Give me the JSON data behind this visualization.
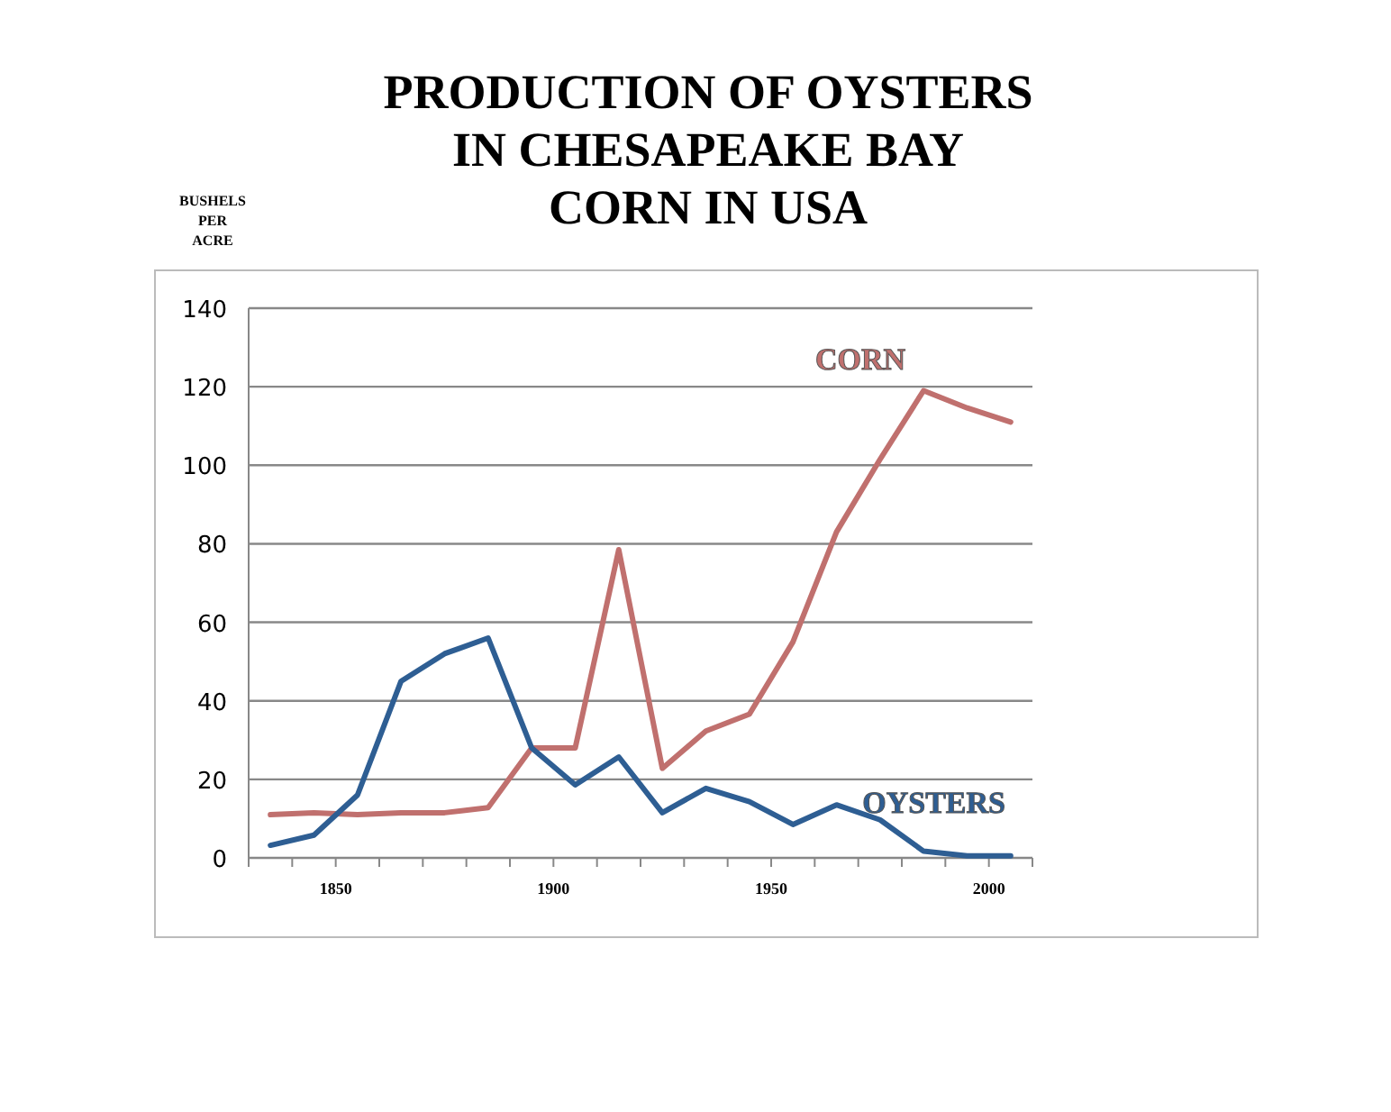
{
  "chart_data": {
    "type": "line",
    "title": "PRODUCTION OF OYSTERS\nIN CHESAPEAKE BAY\nCORN IN USA",
    "ylabel": "BUSHELS\nPER\nACRE",
    "x": [
      1835,
      1845,
      1855,
      1865,
      1875,
      1885,
      1895,
      1905,
      1915,
      1925,
      1935,
      1945,
      1955,
      1965,
      1975,
      1985,
      1995,
      2005
    ],
    "series": [
      {
        "name": "CORN",
        "color": "#c0706e",
        "values": [
          11,
          11.5,
          11,
          11.5,
          11.5,
          12.8,
          28,
          28,
          78.5,
          22.8,
          32.3,
          36.6,
          55,
          83,
          101.5,
          119,
          114.6,
          111
        ]
      },
      {
        "name": "OYSTERS",
        "color": "#2e5e93",
        "values": [
          3.2,
          5.8,
          16,
          45,
          52,
          56,
          28,
          18.6,
          25.7,
          11.5,
          17.7,
          14.3,
          8.5,
          13.5,
          9.7,
          1.7,
          0.5,
          0.5
        ]
      }
    ],
    "xlim": [
      1830,
      2010
    ],
    "xticks": [
      {
        "value": 1840,
        "label": null
      },
      1850,
      {
        "value": 1860,
        "label": null
      },
      {
        "value": 1870,
        "label": null
      },
      {
        "value": 1880,
        "label": null
      },
      {
        "value": 1890,
        "label": null
      },
      1900,
      {
        "value": 1910,
        "label": null
      },
      {
        "value": 1920,
        "label": null
      },
      {
        "value": 1930,
        "label": null
      },
      {
        "value": 1940,
        "label": null
      },
      1950,
      {
        "value": 1960,
        "label": null
      },
      {
        "value": 1970,
        "label": null
      },
      {
        "value": 1980,
        "label": null
      },
      {
        "value": 1990,
        "label": null
      },
      2000
    ],
    "ylim": [
      0,
      140
    ],
    "yticks": [
      0,
      20,
      40,
      60,
      80,
      100,
      120,
      140
    ],
    "grid": "y",
    "marker": "none",
    "line_style": "solid"
  }
}
